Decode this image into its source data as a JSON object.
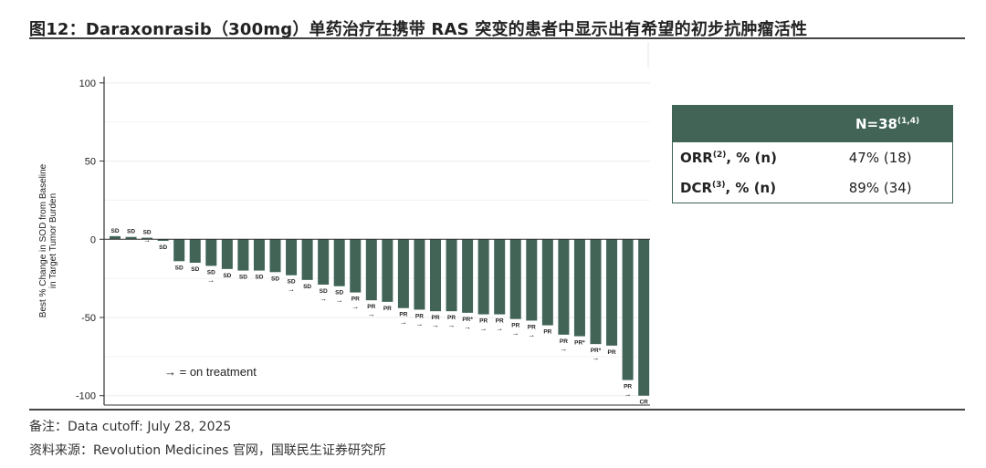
{
  "title": "图12：Daraxonrasib（300mg）单药治疗在携带 RAS 突变的患者中显示出有希望的初步抗肿瘤活性",
  "note": "备注：Data cutoff: July 28, 2025",
  "source": "资料来源：Revolution Medicines 官网，国联民生证券研究所",
  "table": {
    "header_main": "N=38",
    "header_sup": "(1,4)",
    "rows": [
      {
        "label_main": "ORR",
        "label_sup": "(2)",
        "label_tail": ", % (n)",
        "value": "47% (18)"
      },
      {
        "label_main": "DCR",
        "label_sup": "(3)",
        "label_tail": ", % (n)",
        "value": "89% (34)"
      }
    ]
  },
  "chart_data": {
    "type": "bar",
    "ylabel": "Best % Change in SOD from Baseline in Target Tumor Burden",
    "ylabel_lines": [
      "Best % Change in SOD from Baseline",
      "in Target Tumor Burden"
    ],
    "ylim": [
      -106,
      104
    ],
    "yticks": [
      100,
      50,
      0,
      -50,
      -100
    ],
    "grid": true,
    "bar_color": "#416457",
    "legend_text": "→ = on treatment",
    "legend_placement": "bottom-left",
    "values": [
      2,
      1.5,
      1,
      -1,
      -14,
      -15,
      -17,
      -19,
      -20,
      -20,
      -21,
      -23,
      -26,
      -29,
      -30,
      -34,
      -39,
      -40,
      -44,
      -45,
      -46,
      -46,
      -47,
      -48,
      -48,
      -51,
      -52,
      -55,
      -61,
      -62,
      -67,
      -68,
      -90,
      -100
    ],
    "labels": [
      "SD",
      "SD",
      "SD",
      "SD",
      "SD",
      "SD",
      "SD",
      "SD",
      "SD",
      "SD",
      "SD",
      "SD",
      "SD",
      "SD",
      "SD",
      "PR",
      "PR",
      "PR",
      "PR",
      "PR",
      "PR",
      "PR",
      "PR*",
      "PR",
      "PR",
      "PR",
      "PR",
      "PR",
      "PR",
      "PR*",
      "PR*",
      "PR",
      "PR",
      "CR"
    ],
    "on_treatment": [
      false,
      false,
      true,
      false,
      false,
      false,
      true,
      false,
      false,
      false,
      false,
      true,
      false,
      true,
      true,
      true,
      true,
      false,
      true,
      true,
      true,
      true,
      true,
      true,
      true,
      true,
      true,
      false,
      true,
      false,
      true,
      false,
      true,
      true
    ]
  }
}
